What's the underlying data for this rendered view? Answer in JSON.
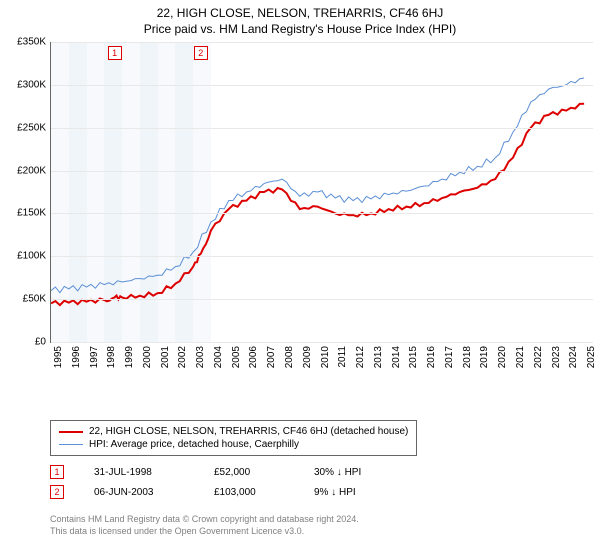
{
  "title": "22, HIGH CLOSE, NELSON, TREHARRIS, CF46 6HJ",
  "subtitle": "Price paid vs. HM Land Registry's House Price Index (HPI)",
  "chart": {
    "type": "line",
    "ylim": [
      0,
      350000
    ],
    "xlim": [
      1995,
      2025.5
    ],
    "y_ticks": [
      0,
      50000,
      100000,
      150000,
      200000,
      250000,
      300000,
      350000
    ],
    "y_tick_labels": [
      "£0",
      "£50K",
      "£100K",
      "£150K",
      "£200K",
      "£250K",
      "£300K",
      "£350K"
    ],
    "x_ticks": [
      1995,
      1996,
      1997,
      1998,
      1999,
      2000,
      2001,
      2002,
      2003,
      2004,
      2005,
      2006,
      2007,
      2008,
      2009,
      2010,
      2011,
      2012,
      2013,
      2014,
      2015,
      2016,
      2017,
      2018,
      2019,
      2020,
      2021,
      2022,
      2023,
      2024,
      2025
    ],
    "x_band_colors": [
      "#f0f4fa",
      "#e4ecf6"
    ],
    "grid_color": "#e8e8e8",
    "series": [
      {
        "name": "property",
        "label": "22, HIGH CLOSE, NELSON, TREHARRIS, CF46 6HJ (detached house)",
        "color": "#dd0000",
        "width": 2,
        "points": [
          [
            1995,
            45000
          ],
          [
            1996,
            46000
          ],
          [
            1997,
            47000
          ],
          [
            1998,
            49000
          ],
          [
            1998.58,
            52000
          ],
          [
            1999,
            52000
          ],
          [
            2000,
            54000
          ],
          [
            2001,
            57000
          ],
          [
            2002,
            68000
          ],
          [
            2003,
            88000
          ],
          [
            2003.43,
            103000
          ],
          [
            2004,
            130000
          ],
          [
            2005,
            155000
          ],
          [
            2006,
            165000
          ],
          [
            2007,
            175000
          ],
          [
            2008,
            178000
          ],
          [
            2009,
            155000
          ],
          [
            2010,
            158000
          ],
          [
            2011,
            150000
          ],
          [
            2012,
            148000
          ],
          [
            2013,
            150000
          ],
          [
            2014,
            155000
          ],
          [
            2015,
            158000
          ],
          [
            2016,
            162000
          ],
          [
            2017,
            168000
          ],
          [
            2018,
            175000
          ],
          [
            2019,
            180000
          ],
          [
            2020,
            190000
          ],
          [
            2021,
            215000
          ],
          [
            2022,
            250000
          ],
          [
            2023,
            265000
          ],
          [
            2024,
            270000
          ],
          [
            2025,
            278000
          ]
        ]
      },
      {
        "name": "hpi",
        "label": "HPI: Average price, detached house, Caerphilly",
        "color": "#5b8fd6",
        "width": 1,
        "points": [
          [
            1995,
            60000
          ],
          [
            1996,
            62000
          ],
          [
            1997,
            64000
          ],
          [
            1998,
            67000
          ],
          [
            1999,
            70000
          ],
          [
            2000,
            74000
          ],
          [
            2001,
            78000
          ],
          [
            2002,
            88000
          ],
          [
            2003,
            105000
          ],
          [
            2004,
            140000
          ],
          [
            2005,
            165000
          ],
          [
            2006,
            175000
          ],
          [
            2007,
            185000
          ],
          [
            2008,
            190000
          ],
          [
            2009,
            170000
          ],
          [
            2010,
            175000
          ],
          [
            2011,
            168000
          ],
          [
            2012,
            165000
          ],
          [
            2013,
            167000
          ],
          [
            2014,
            172000
          ],
          [
            2015,
            176000
          ],
          [
            2016,
            182000
          ],
          [
            2017,
            190000
          ],
          [
            2018,
            198000
          ],
          [
            2019,
            205000
          ],
          [
            2020,
            215000
          ],
          [
            2021,
            245000
          ],
          [
            2022,
            280000
          ],
          [
            2023,
            295000
          ],
          [
            2024,
            300000
          ],
          [
            2025,
            308000
          ]
        ]
      }
    ],
    "sale_markers": [
      {
        "n": "1",
        "x": 1998.58
      },
      {
        "n": "2",
        "x": 2003.43
      }
    ]
  },
  "legend": {
    "items": [
      {
        "color": "#dd0000",
        "width": 2,
        "label_path": "chart.series.0.label"
      },
      {
        "color": "#5b8fd6",
        "width": 1,
        "label_path": "chart.series.1.label"
      }
    ]
  },
  "sales": [
    {
      "n": "1",
      "date": "31-JUL-1998",
      "price": "£52,000",
      "diff": "30% ↓ HPI"
    },
    {
      "n": "2",
      "date": "06-JUN-2003",
      "price": "£103,000",
      "diff": "9% ↓ HPI"
    }
  ],
  "footnote": {
    "line1": "Contains HM Land Registry data © Crown copyright and database right 2024.",
    "line2": "This data is licensed under the Open Government Licence v3.0."
  }
}
